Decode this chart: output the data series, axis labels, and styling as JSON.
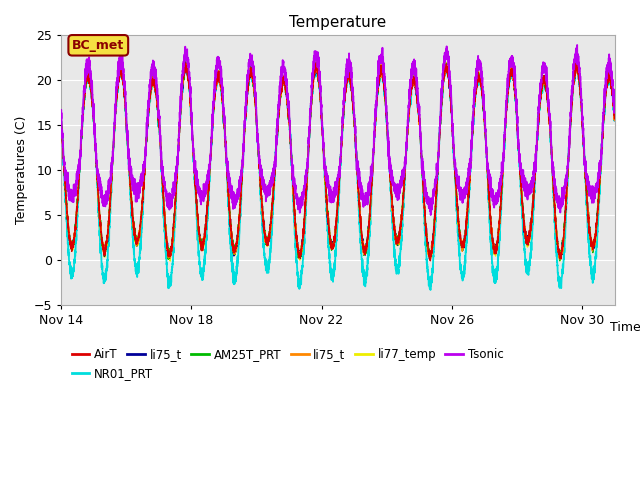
{
  "title": "Temperature",
  "ylabel": "Temperatures (C)",
  "xlabel": "Time",
  "ylim": [
    -5,
    25
  ],
  "xlim_days": [
    0,
    17
  ],
  "yticks": [
    -5,
    0,
    5,
    10,
    15,
    20,
    25
  ],
  "xtick_positions": [
    0,
    4,
    8,
    12,
    16
  ],
  "xtick_labels": [
    "Nov 14",
    "Nov 18",
    "Nov 22",
    "Nov 26",
    "Nov 30"
  ],
  "bg_color": "#e8e8e8",
  "fig_color": "#ffffff",
  "annotation_text": "BC_met",
  "annotation_bg": "#f5e042",
  "annotation_border": "#8b0000",
  "series": [
    {
      "name": "AirT",
      "color": "#dd0000",
      "lw": 1.0,
      "zorder": 5
    },
    {
      "name": "li75_t",
      "color": "#000099",
      "lw": 1.0,
      "zorder": 4
    },
    {
      "name": "AM25T_PRT",
      "color": "#00bb00",
      "lw": 1.0,
      "zorder": 4
    },
    {
      "name": "li75_t",
      "color": "#ff8800",
      "lw": 1.0,
      "zorder": 4
    },
    {
      "name": "li77_temp",
      "color": "#eeee00",
      "lw": 1.0,
      "zorder": 3
    },
    {
      "name": "Tsonic",
      "color": "#bb00ee",
      "lw": 1.3,
      "zorder": 6
    },
    {
      "name": "NR01_PRT",
      "color": "#00dddd",
      "lw": 1.3,
      "zorder": 2
    }
  ],
  "grid_color": "#ffffff",
  "title_fontsize": 11,
  "axis_label_fontsize": 9,
  "tick_fontsize": 9,
  "legend_fontsize": 8.5
}
